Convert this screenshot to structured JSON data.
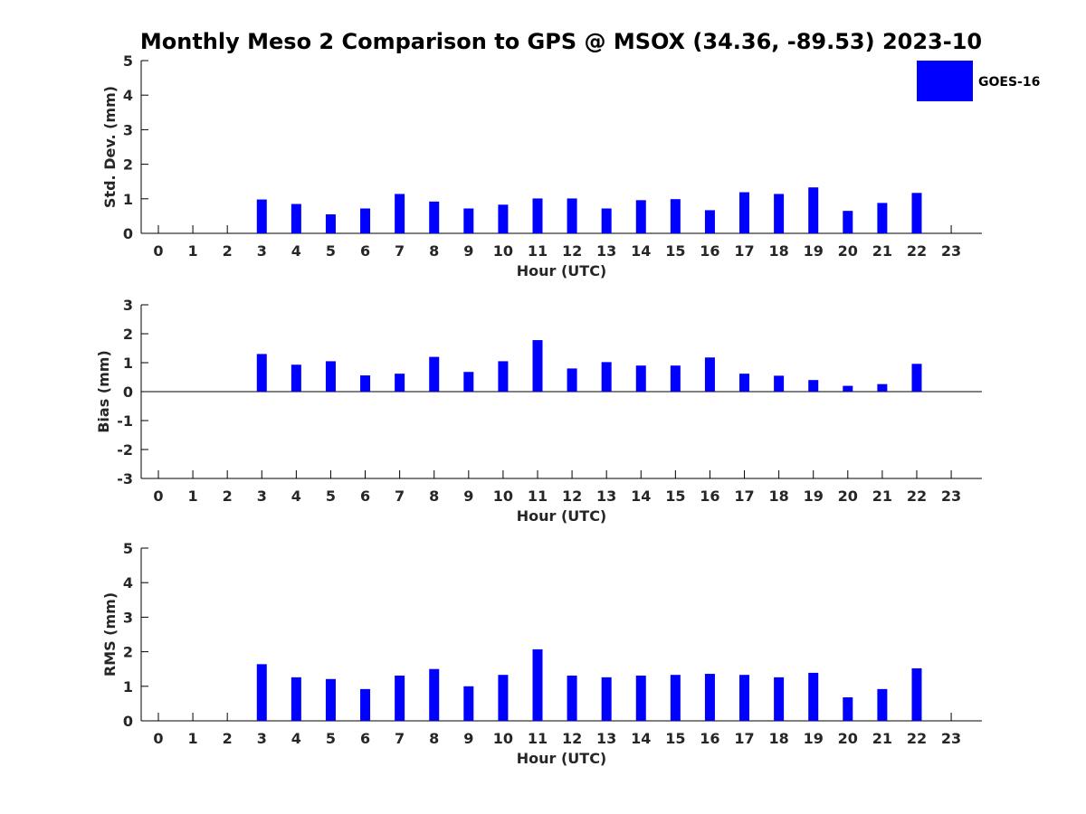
{
  "title": "Monthly Meso 2 Comparison to GPS @ MSOX (34.36, -89.53) 2023-10",
  "legend": {
    "label": "GOES-16",
    "color": "#0000ff",
    "placement": "top-right"
  },
  "chart_data": [
    {
      "type": "bar",
      "name": "std-dev",
      "xlabel": "Hour (UTC)",
      "ylabel": "Std. Dev. (mm)",
      "ylim": [
        0,
        5
      ],
      "yticks": [
        "0",
        "1",
        "2",
        "3",
        "4",
        "5"
      ],
      "categories": [
        "0",
        "1",
        "2",
        "3",
        "4",
        "5",
        "6",
        "7",
        "8",
        "9",
        "10",
        "11",
        "12",
        "13",
        "14",
        "15",
        "16",
        "17",
        "18",
        "19",
        "20",
        "21",
        "22",
        "23"
      ],
      "series": [
        {
          "name": "GOES-16",
          "color": "#0000ff",
          "values": [
            null,
            null,
            null,
            0.98,
            0.85,
            0.55,
            0.72,
            1.14,
            0.92,
            0.72,
            0.83,
            1.01,
            1.01,
            0.72,
            0.96,
            0.99,
            0.67,
            1.19,
            1.14,
            1.33,
            0.65,
            0.88,
            1.17,
            null
          ]
        }
      ]
    },
    {
      "type": "bar",
      "name": "bias",
      "xlabel": "Hour (UTC)",
      "ylabel": "Bias (mm)",
      "ylim": [
        -3,
        3
      ],
      "yticks": [
        "-3",
        "-2",
        "-1",
        "0",
        "1",
        "2",
        "3"
      ],
      "categories": [
        "0",
        "1",
        "2",
        "3",
        "4",
        "5",
        "6",
        "7",
        "8",
        "9",
        "10",
        "11",
        "12",
        "13",
        "14",
        "15",
        "16",
        "17",
        "18",
        "19",
        "20",
        "21",
        "22",
        "23"
      ],
      "series": [
        {
          "name": "GOES-16",
          "color": "#0000ff",
          "values": [
            null,
            null,
            null,
            1.3,
            0.93,
            1.05,
            0.56,
            0.62,
            1.2,
            0.68,
            1.05,
            1.78,
            0.8,
            1.02,
            0.9,
            0.9,
            1.18,
            0.62,
            0.55,
            0.4,
            0.2,
            0.26,
            0.96,
            null
          ]
        }
      ]
    },
    {
      "type": "bar",
      "name": "rms",
      "xlabel": "Hour (UTC)",
      "ylabel": "RMS (mm)",
      "ylim": [
        0,
        5
      ],
      "yticks": [
        "0",
        "1",
        "2",
        "3",
        "4",
        "5"
      ],
      "categories": [
        "0",
        "1",
        "2",
        "3",
        "4",
        "5",
        "6",
        "7",
        "8",
        "9",
        "10",
        "11",
        "12",
        "13",
        "14",
        "15",
        "16",
        "17",
        "18",
        "19",
        "20",
        "21",
        "22",
        "23"
      ],
      "series": [
        {
          "name": "GOES-16",
          "color": "#0000ff",
          "values": [
            null,
            null,
            null,
            1.64,
            1.26,
            1.21,
            0.92,
            1.31,
            1.5,
            1.0,
            1.33,
            2.07,
            1.31,
            1.26,
            1.31,
            1.33,
            1.36,
            1.33,
            1.26,
            1.39,
            0.68,
            0.92,
            1.52,
            null
          ]
        }
      ]
    }
  ]
}
